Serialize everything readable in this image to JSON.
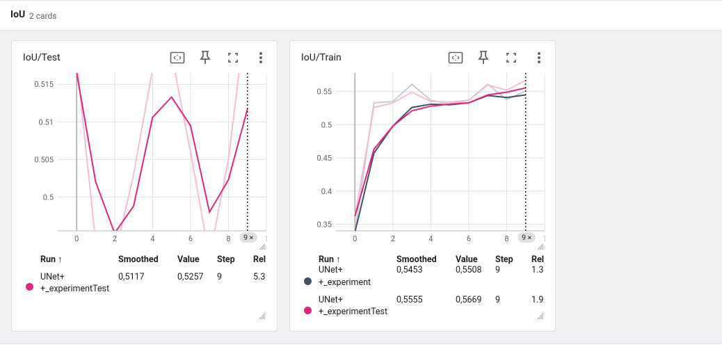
{
  "header": {
    "title": "IoU",
    "count": "2 cards"
  },
  "colors": {
    "pink": "#e0257f",
    "pink_light": "#f5bcd8",
    "slate": "#425066",
    "slate_light": "#c9ccd3",
    "axis": "#9e9e9e",
    "grid": "#e0e0e0"
  },
  "icons": [
    "fit-domain-icon",
    "pin-icon",
    "fullscreen-icon",
    "more-vert-icon",
    "resize-handle-icon"
  ],
  "cards": [
    {
      "title": "IoU/Test",
      "step_badge": "9",
      "table": {
        "headers": {
          "run": "Run ↑",
          "smoothed": "Smoothed",
          "value": "Value",
          "step": "Step",
          "rel": "Rel"
        },
        "rows": [
          {
            "run_line1": "UNet+",
            "run_line2": "+_experimentTest",
            "smoothed": "0,5117",
            "value": "0,5257",
            "step": "9",
            "rel": "5.3",
            "color": "#e0257f"
          }
        ]
      },
      "chart_data": {
        "type": "line",
        "title": "IoU/Test",
        "xlim": [
          -1,
          10
        ],
        "ylim": [
          0.4955,
          0.5165
        ],
        "xticks": [
          "0",
          "2",
          "4",
          "6",
          "8",
          "1"
        ],
        "yticks": [
          "0.5",
          "0.505",
          "0.51",
          "0.515"
        ],
        "grid": true,
        "series": [
          {
            "name": "UNet+ +_experimentTest",
            "x": [
              0,
              1,
              2,
              3,
              4,
              5,
              6,
              7,
              8,
              9
            ],
            "smoothed": [
              0.5165,
              0.502,
              0.4952,
              0.4988,
              0.5106,
              0.5133,
              0.5095,
              0.498,
              0.5023,
              0.5117
            ],
            "raw": [
              0.518,
              0.494,
              0.492,
              0.503,
              0.517,
              0.519,
              0.506,
              0.492,
              0.505,
              0.5257
            ]
          }
        ]
      }
    },
    {
      "title": "IoU/Train",
      "step_badge": "9",
      "table": {
        "headers": {
          "run": "Run ↑",
          "smoothed": "Smoothed",
          "value": "Value",
          "step": "Step",
          "rel": "Rel"
        },
        "rows": [
          {
            "run_line1": "UNet+",
            "run_line2": "+_experiment",
            "smoothed": "0,5453",
            "value": "0,5508",
            "step": "9",
            "rel": "1.3",
            "color": "#425066"
          },
          {
            "run_line1": "UNet+",
            "run_line2": "+_experimentTest",
            "smoothed": "0,5555",
            "value": "0,5669",
            "step": "9",
            "rel": "1.9",
            "color": "#e0257f"
          }
        ]
      },
      "chart_data": {
        "type": "line",
        "title": "IoU/Train",
        "xlim": [
          -1,
          10
        ],
        "ylim": [
          0.34,
          0.578
        ],
        "xticks": [
          "0",
          "2",
          "4",
          "6",
          "8",
          "1"
        ],
        "yticks": [
          "0.35",
          "0.4",
          "0.45",
          "0.5",
          "0.55"
        ],
        "grid": true,
        "series": [
          {
            "name": "UNet+ +_experiment",
            "x": [
              0,
              1,
              2,
              3,
              4,
              5,
              6,
              7,
              8,
              9
            ],
            "smoothed": [
              0.338,
              0.457,
              0.498,
              0.526,
              0.531,
              0.53,
              0.533,
              0.544,
              0.541,
              0.545
            ],
            "raw": [
              0.338,
              0.533,
              0.535,
              0.561,
              0.537,
              0.531,
              0.537,
              0.561,
              0.538,
              0.5508
            ]
          },
          {
            "name": "UNet+ +_experimentTest",
            "x": [
              0,
              1,
              2,
              3,
              4,
              5,
              6,
              7,
              8,
              9
            ],
            "smoothed": [
              0.362,
              0.463,
              0.498,
              0.521,
              0.528,
              0.531,
              0.533,
              0.545,
              0.549,
              0.5555
            ],
            "raw": [
              0.362,
              0.526,
              0.533,
              0.549,
              0.535,
              0.534,
              0.537,
              0.56,
              0.552,
              0.5669
            ]
          }
        ]
      }
    }
  ]
}
